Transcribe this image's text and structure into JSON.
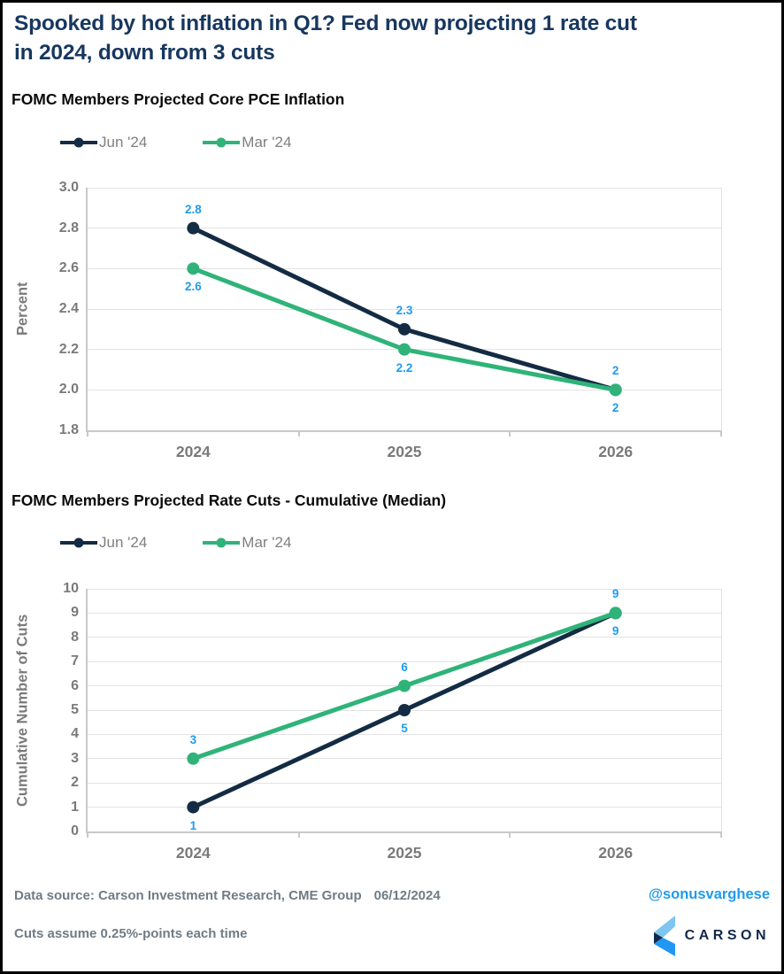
{
  "header": {
    "title_line1": "Spooked by hot inflation in Q1? Fed now projecting 1 rate cut",
    "title_line2": "in 2024, down from 3 cuts"
  },
  "chart_data": [
    {
      "type": "line",
      "title": "FOMC Members Projected Core PCE Inflation",
      "categories": [
        "2024",
        "2025",
        "2026"
      ],
      "ylabel": "Percent",
      "ylim": [
        1.8,
        3.0
      ],
      "ytick_step": 0.2,
      "yticks": [
        "1.8",
        "2.0",
        "2.2",
        "2.4",
        "2.6",
        "2.8",
        "3.0"
      ],
      "grid": true,
      "legend_position": "top-left",
      "point_label_color": "#1E9BF0",
      "series": [
        {
          "name": "Jun '24",
          "color": "#132B43",
          "values": [
            2.8,
            2.3,
            2.0
          ],
          "point_labels": [
            "2.8",
            "2.3",
            "2"
          ],
          "label_side": "above"
        },
        {
          "name": "Mar '24",
          "color": "#2FB379",
          "values": [
            2.6,
            2.2,
            2.0
          ],
          "point_labels": [
            "2.6",
            "2.2",
            "2"
          ],
          "label_side": "below"
        }
      ]
    },
    {
      "type": "line",
      "title": "FOMC Members Projected Rate Cuts - Cumulative (Median)",
      "categories": [
        "2024",
        "2025",
        "2026"
      ],
      "ylabel": "Cumulative Number of Cuts",
      "ylim": [
        0,
        10
      ],
      "ytick_step": 1,
      "yticks": [
        "0",
        "1",
        "2",
        "3",
        "4",
        "5",
        "6",
        "7",
        "8",
        "9",
        "10"
      ],
      "grid": true,
      "legend_position": "top-left",
      "point_label_color": "#1E9BF0",
      "series": [
        {
          "name": "Jun '24",
          "color": "#132B43",
          "values": [
            1,
            5,
            9
          ],
          "point_labels": [
            "1",
            "5",
            "9"
          ],
          "label_side": "below"
        },
        {
          "name": "Mar '24",
          "color": "#2FB379",
          "values": [
            3,
            6,
            9
          ],
          "point_labels": [
            "3",
            "6",
            "9"
          ],
          "label_side": "above"
        }
      ]
    }
  ],
  "footer": {
    "source": "Data source: Carson Investment Research, CME Group",
    "date": "06/12/2024",
    "note": "Cuts assume 0.25%-points each time",
    "handle": "@sonusvarghese",
    "brand": "CARSON"
  },
  "colors": {
    "title_navy": "#17375E",
    "line_navy": "#132B43",
    "line_green": "#2FB379",
    "point_label_blue": "#1E9BF0",
    "axis_text_gray": "#7A7A7A",
    "footer_gray": "#6F7C86",
    "gridline_gray": "#E3E3E3",
    "logo_light_blue": "#7EC5F1",
    "logo_blue": "#2196F3",
    "logo_navy": "#13294B"
  }
}
